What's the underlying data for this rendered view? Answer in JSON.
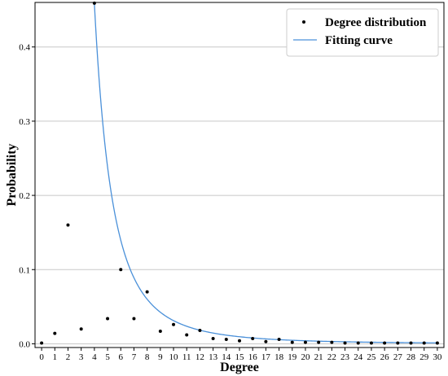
{
  "chart_data": {
    "type": "scatter",
    "xlabel": "Degree",
    "ylabel": "Probability",
    "xlim": [
      -0.5,
      30.5
    ],
    "ylim": [
      -0.005,
      0.46
    ],
    "xticks": [
      0,
      1,
      2,
      3,
      4,
      5,
      6,
      7,
      8,
      9,
      10,
      11,
      12,
      13,
      14,
      15,
      16,
      17,
      18,
      19,
      20,
      21,
      22,
      23,
      24,
      25,
      26,
      27,
      28,
      29,
      30
    ],
    "yticks": [
      0.0,
      0.1,
      0.2,
      0.3,
      0.4
    ],
    "ytick_labels": [
      "0.0",
      "0.1",
      "0.2",
      "0.3",
      "0.4"
    ],
    "grid": "horizontal",
    "legend_position": "top-right",
    "series": [
      {
        "name": "Degree distribution",
        "kind": "scatter",
        "color": "#000000",
        "x": [
          0,
          1,
          2,
          3,
          4,
          5,
          6,
          7,
          8,
          9,
          10,
          11,
          12,
          13,
          14,
          15,
          16,
          17,
          18,
          19,
          20,
          21,
          22,
          23,
          24,
          25,
          26,
          27,
          28,
          29,
          30
        ],
        "y": [
          0.001,
          0.014,
          0.16,
          0.02,
          0.459,
          0.034,
          0.1,
          0.034,
          0.07,
          0.017,
          0.026,
          0.012,
          0.018,
          0.007,
          0.006,
          0.004,
          0.007,
          0.003,
          0.006,
          0.002,
          0.002,
          0.002,
          0.002,
          0.001,
          0.001,
          0.001,
          0.001,
          0.001,
          0.001,
          0.001,
          0.001
        ]
      },
      {
        "name": "Fitting curve",
        "kind": "line",
        "color": "#4a90d9",
        "curve": {
          "form": "a*x^-b",
          "a": 26.6,
          "b": 2.93,
          "x_start": 4.0,
          "x_end": 30.0
        }
      }
    ]
  }
}
